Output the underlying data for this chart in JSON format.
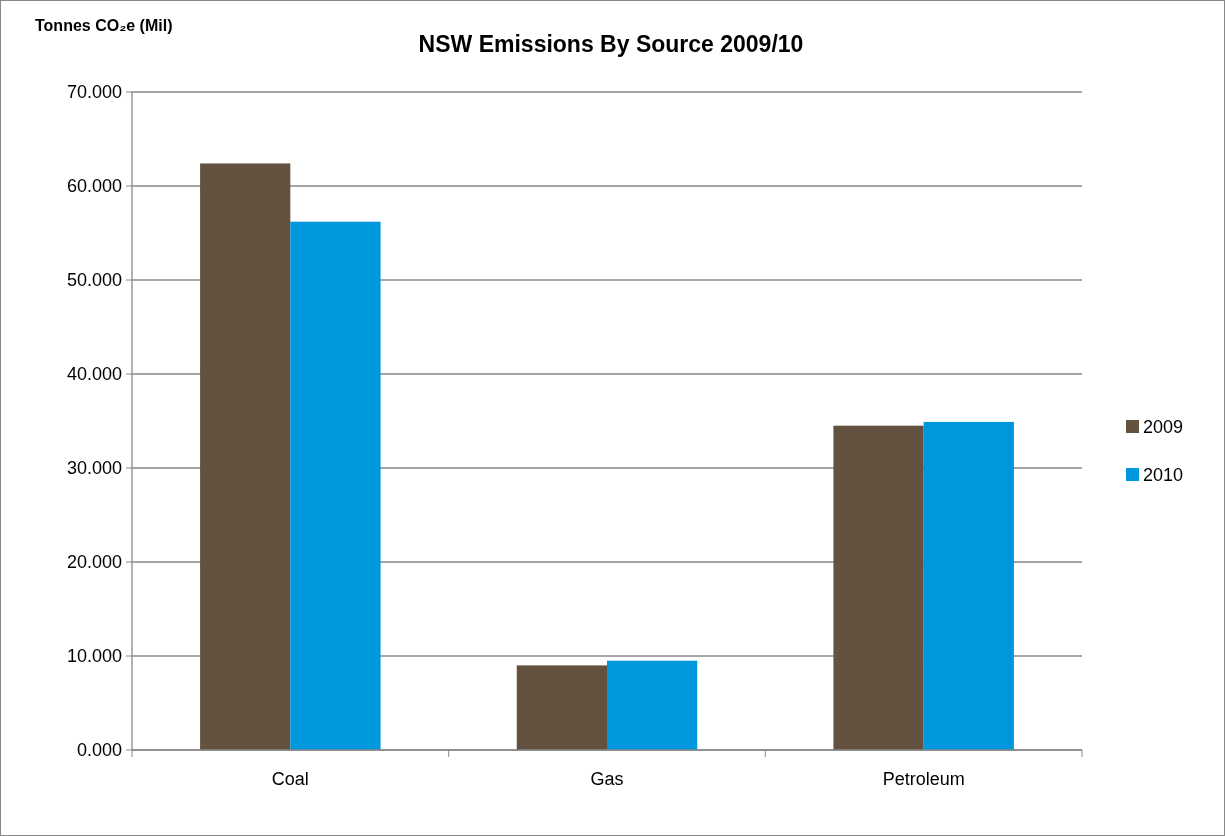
{
  "chart_data": {
    "type": "bar",
    "title": "NSW Emissions By Source 2009/10",
    "ylabel": "Tonnes CO₂e (Mil)",
    "categories": [
      "Coal",
      "Gas",
      "Petroleum"
    ],
    "series": [
      {
        "name": "2009",
        "color": "#635240",
        "values": [
          62.4,
          9.0,
          34.5
        ]
      },
      {
        "name": "2010",
        "color": "#0098dc",
        "values": [
          56.2,
          9.5,
          34.9
        ]
      }
    ],
    "ylim": [
      0,
      70
    ],
    "yticks": [
      {
        "value": 0,
        "label": "0.000"
      },
      {
        "value": 10,
        "label": "10.000"
      },
      {
        "value": 20,
        "label": "20.000"
      },
      {
        "value": 30,
        "label": "30.000"
      },
      {
        "value": 40,
        "label": "40.000"
      },
      {
        "value": 50,
        "label": "50.000"
      },
      {
        "value": 60,
        "label": "60.000"
      },
      {
        "value": 70,
        "label": "70.000"
      }
    ],
    "grid": "y",
    "legend": "right"
  }
}
